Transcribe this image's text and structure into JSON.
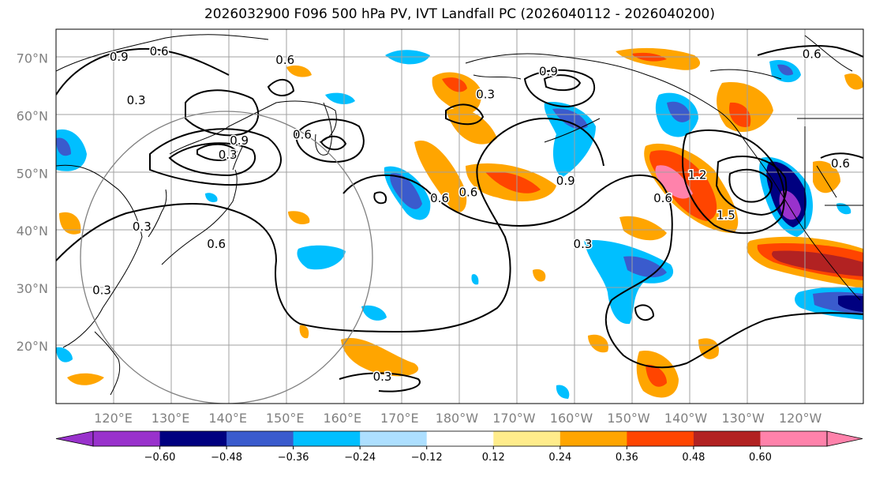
{
  "title": "2026032900 F096 500 hPa PV, IVT Landfall PC (2026040112 - 2026040200)",
  "map": {
    "lat_labels": [
      {
        "text": "70°N",
        "lat": 70
      },
      {
        "text": "60°N",
        "lat": 60
      },
      {
        "text": "50°N",
        "lat": 50
      },
      {
        "text": "40°N",
        "lat": 40
      },
      {
        "text": "30°N",
        "lat": 30
      },
      {
        "text": "20°N",
        "lat": 20
      }
    ],
    "lon_labels": [
      {
        "text": "120°E",
        "lon": 120
      },
      {
        "text": "130°E",
        "lon": 130
      },
      {
        "text": "140°E",
        "lon": 140
      },
      {
        "text": "150°E",
        "lon": 150
      },
      {
        "text": "160°E",
        "lon": 160
      },
      {
        "text": "170°E",
        "lon": 170
      },
      {
        "text": "180°W",
        "lon": 180
      },
      {
        "text": "170°W",
        "lon": 190
      },
      {
        "text": "160°W",
        "lon": 200
      },
      {
        "text": "150°W",
        "lon": 210
      },
      {
        "text": "140°W",
        "lon": 220
      },
      {
        "text": "130°W",
        "lon": 230
      },
      {
        "text": "120°W",
        "lon": 240
      }
    ],
    "extent": {
      "lon_min": 110,
      "lon_max": 251,
      "lat_min": 10,
      "lat_max": 75
    },
    "contour_labels": [
      {
        "text": "0.9",
        "lon": 121,
        "lat": 69.5
      },
      {
        "text": "0.6",
        "lon": 128,
        "lat": 70.5
      },
      {
        "text": "0.3",
        "lon": 124,
        "lat": 62
      },
      {
        "text": "0.6",
        "lon": 150,
        "lat": 69
      },
      {
        "text": "0.9",
        "lon": 142,
        "lat": 55
      },
      {
        "text": "0.6",
        "lon": 153,
        "lat": 56
      },
      {
        "text": "0.3",
        "lon": 140,
        "lat": 52.5
      },
      {
        "text": "0.3",
        "lon": 125,
        "lat": 40
      },
      {
        "text": "0.6",
        "lon": 138,
        "lat": 37
      },
      {
        "text": "0.3",
        "lon": 118,
        "lat": 29
      },
      {
        "text": "0.6",
        "lon": 177,
        "lat": 45
      },
      {
        "text": "0.3",
        "lon": 185,
        "lat": 63
      },
      {
        "text": "0.9",
        "lon": 196,
        "lat": 67
      },
      {
        "text": "0.9",
        "lon": 199,
        "lat": 48
      },
      {
        "text": "0.6",
        "lon": 182,
        "lat": 46
      },
      {
        "text": "0.3",
        "lon": 202,
        "lat": 37
      },
      {
        "text": "1.2",
        "lon": 222,
        "lat": 49
      },
      {
        "text": "0.6",
        "lon": 216,
        "lat": 45
      },
      {
        "text": "1.5",
        "lon": 227,
        "lat": 42
      },
      {
        "text": "0.6",
        "lon": 242,
        "lat": 70
      },
      {
        "text": "0.6",
        "lon": 247,
        "lat": 51
      },
      {
        "text": "0.3",
        "lon": 167,
        "lat": 14
      }
    ],
    "circle": {
      "lon": 140,
      "lat": 40,
      "radius_deg": 30
    }
  },
  "colorbar": {
    "colors": [
      "#9932CC",
      "#000080",
      "#3A5BCD",
      "#00BFFF",
      "#ADDFFF",
      "#FFFFFF",
      "#FFEC8B",
      "#FFA500",
      "#FF4500",
      "#B22222",
      "#FF82AB"
    ],
    "extend_low_color": "#9932CC",
    "extend_high_color": "#FF82AB",
    "ticks": [
      "−0.60",
      "−0.48",
      "−0.36",
      "−0.24",
      "−0.12",
      "0.12",
      "0.24",
      "0.36",
      "0.48",
      "0.60"
    ]
  }
}
